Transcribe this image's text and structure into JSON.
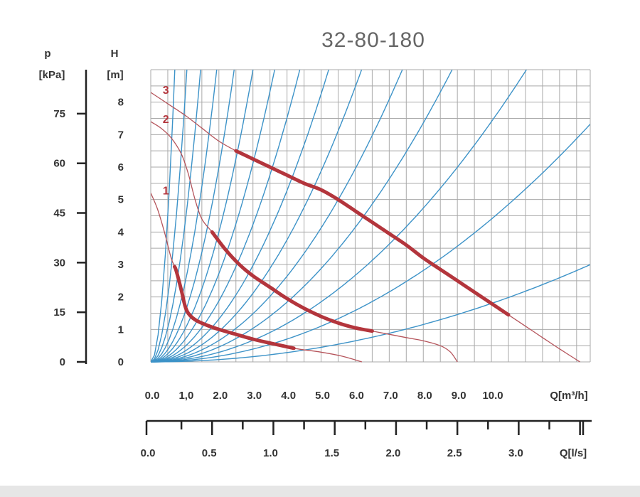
{
  "chart_data": {
    "type": "line",
    "title": "32-80-180",
    "left_axis": {
      "label": "p",
      "unit": "[kPa]",
      "ticks": [
        "0",
        "15",
        "30",
        "45",
        "60",
        "75"
      ]
    },
    "y_axis": {
      "label": "H",
      "unit": "[m]",
      "ticks": [
        "0",
        "1",
        "2",
        "3",
        "4",
        "5",
        "6",
        "7",
        "8"
      ],
      "ylim": [
        0,
        9
      ]
    },
    "x_axis": {
      "label": "Q[m³/h]",
      "ticks": [
        "0.0",
        "1,0",
        "2.0",
        "3.0",
        "4.0",
        "5.0",
        "6.0",
        "7.0",
        "8.0",
        "9.0",
        "10.0"
      ],
      "xlim": [
        0,
        12.9
      ]
    },
    "x2_axis": {
      "label": "Q[l/s]",
      "ticks": [
        "0.0",
        "0.5",
        "1.0",
        "1.5",
        "2.0",
        "2.5",
        "3.0"
      ],
      "xlim": [
        0,
        3.6
      ]
    },
    "series": [
      {
        "name": "1",
        "points": [
          [
            0,
            5.2
          ],
          [
            0.2,
            4.7
          ],
          [
            0.4,
            4.0
          ],
          [
            0.6,
            3.2
          ],
          [
            0.75,
            2.8
          ],
          [
            0.9,
            2.2
          ],
          [
            1.0,
            1.75
          ],
          [
            1.1,
            1.5
          ],
          [
            1.3,
            1.3
          ],
          [
            1.6,
            1.15
          ],
          [
            2.0,
            1.0
          ],
          [
            2.5,
            0.85
          ],
          [
            3.0,
            0.7
          ],
          [
            3.5,
            0.58
          ],
          [
            4.2,
            0.42
          ],
          [
            5.0,
            0.3
          ],
          [
            5.6,
            0.18
          ],
          [
            6.2,
            0.0
          ]
        ],
        "operating_range": [
          0.7,
          4.2
        ]
      },
      {
        "name": "2",
        "points": [
          [
            0,
            7.4
          ],
          [
            0.3,
            7.2
          ],
          [
            0.6,
            6.9
          ],
          [
            0.9,
            6.4
          ],
          [
            1.1,
            5.8
          ],
          [
            1.3,
            5.0
          ],
          [
            1.5,
            4.4
          ],
          [
            1.8,
            4.0
          ],
          [
            2.2,
            3.45
          ],
          [
            2.6,
            3.0
          ],
          [
            3.0,
            2.65
          ],
          [
            3.5,
            2.3
          ],
          [
            4.0,
            1.95
          ],
          [
            4.5,
            1.65
          ],
          [
            5.0,
            1.4
          ],
          [
            5.5,
            1.2
          ],
          [
            6.0,
            1.05
          ],
          [
            6.5,
            0.95
          ],
          [
            7.0,
            0.85
          ],
          [
            7.5,
            0.75
          ],
          [
            8.0,
            0.65
          ],
          [
            8.5,
            0.5
          ],
          [
            8.8,
            0.3
          ],
          [
            9.0,
            0.0
          ]
        ],
        "operating_range": [
          1.8,
          6.5
        ]
      },
      {
        "name": "3",
        "points": [
          [
            0,
            8.3
          ],
          [
            0.5,
            7.95
          ],
          [
            1.0,
            7.6
          ],
          [
            1.5,
            7.2
          ],
          [
            2.0,
            6.8
          ],
          [
            2.5,
            6.5
          ],
          [
            3.0,
            6.25
          ],
          [
            3.5,
            6.0
          ],
          [
            4.0,
            5.75
          ],
          [
            4.5,
            5.5
          ],
          [
            5.0,
            5.3
          ],
          [
            5.5,
            5.0
          ],
          [
            6.0,
            4.65
          ],
          [
            6.5,
            4.3
          ],
          [
            7.0,
            3.95
          ],
          [
            7.5,
            3.6
          ],
          [
            8.0,
            3.2
          ],
          [
            8.5,
            2.85
          ],
          [
            9.0,
            2.5
          ],
          [
            9.5,
            2.15
          ],
          [
            10.0,
            1.8
          ],
          [
            10.5,
            1.45
          ],
          [
            11.0,
            1.1
          ],
          [
            11.5,
            0.75
          ],
          [
            12.0,
            0.4
          ],
          [
            12.6,
            0.0
          ]
        ],
        "operating_range": [
          2.5,
          10.5
        ]
      }
    ],
    "system_curves_k": [
      18,
      8,
      4.2,
      2.4,
      1.5,
      1.0,
      0.68,
      0.47,
      0.33,
      0.235,
      0.165,
      0.115,
      0.074,
      0.044,
      0.018
    ]
  }
}
